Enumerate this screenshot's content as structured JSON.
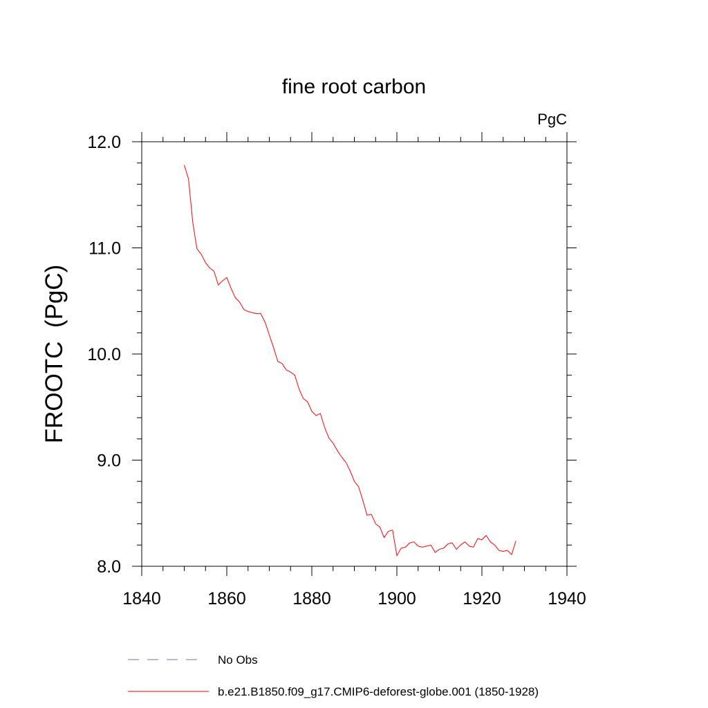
{
  "chart_data": {
    "type": "line",
    "title": "fine root carbon",
    "units_label": "PgC",
    "ylabel": "FROOTC  (PgC)",
    "xlabel": "",
    "xlim": [
      1840,
      1940
    ],
    "ylim": [
      8.0,
      12.0
    ],
    "x_ticks": [
      1840,
      1860,
      1880,
      1900,
      1920,
      1940
    ],
    "x_tick_labels": [
      "1840",
      "1860",
      "1880",
      "1900",
      "1920",
      "1940"
    ],
    "y_ticks": [
      8.0,
      9.0,
      10.0,
      11.0,
      12.0
    ],
    "y_tick_labels": [
      "8.0",
      "9.0",
      "10.0",
      "11.0",
      "12.0"
    ],
    "grid": false,
    "legend_position": "bottom",
    "legend": [
      {
        "label": "No Obs",
        "color": "#7a6fc0",
        "dash": "dashed"
      },
      {
        "label": "b.e21.B1850.f09_g17.CMIP6-deforest-globe.001 (1850-1928)",
        "color": "#ff0000",
        "dash": "solid"
      }
    ],
    "series": [
      {
        "name": "b.e21.B1850.f09_g17.CMIP6-deforest-globe.001 (1850-1928)",
        "color": "#ff0000",
        "x": [
          1850,
          1851,
          1852,
          1853,
          1854,
          1855,
          1856,
          1857,
          1858,
          1859,
          1860,
          1861,
          1862,
          1863,
          1864,
          1865,
          1866,
          1867,
          1868,
          1869,
          1870,
          1871,
          1872,
          1873,
          1874,
          1875,
          1876,
          1877,
          1878,
          1879,
          1880,
          1881,
          1882,
          1883,
          1884,
          1885,
          1886,
          1887,
          1888,
          1889,
          1890,
          1891,
          1892,
          1893,
          1894,
          1895,
          1896,
          1897,
          1898,
          1899,
          1900,
          1901,
          1902,
          1903,
          1904,
          1905,
          1906,
          1907,
          1908,
          1909,
          1910,
          1911,
          1912,
          1913,
          1914,
          1915,
          1916,
          1917,
          1918,
          1919,
          1920,
          1921,
          1922,
          1923,
          1924,
          1925,
          1926,
          1927,
          1928
        ],
        "values": [
          11.78,
          11.65,
          11.24,
          10.99,
          10.94,
          10.86,
          10.81,
          10.78,
          10.65,
          10.69,
          10.72,
          10.62,
          10.53,
          10.49,
          10.42,
          10.4,
          10.39,
          10.38,
          10.38,
          10.3,
          10.18,
          10.06,
          9.93,
          9.91,
          9.85,
          9.83,
          9.8,
          9.67,
          9.58,
          9.55,
          9.46,
          9.42,
          9.44,
          9.31,
          9.21,
          9.16,
          9.09,
          9.03,
          8.98,
          8.9,
          8.8,
          8.75,
          8.62,
          8.48,
          8.49,
          8.4,
          8.37,
          8.27,
          8.33,
          8.34,
          8.1,
          8.17,
          8.18,
          8.22,
          8.23,
          8.19,
          8.18,
          8.19,
          8.2,
          8.13,
          8.16,
          8.17,
          8.21,
          8.22,
          8.16,
          8.2,
          8.23,
          8.19,
          8.18,
          8.26,
          8.25,
          8.29,
          8.23,
          8.2,
          8.15,
          8.14,
          8.15,
          8.11,
          8.24
        ]
      }
    ]
  }
}
